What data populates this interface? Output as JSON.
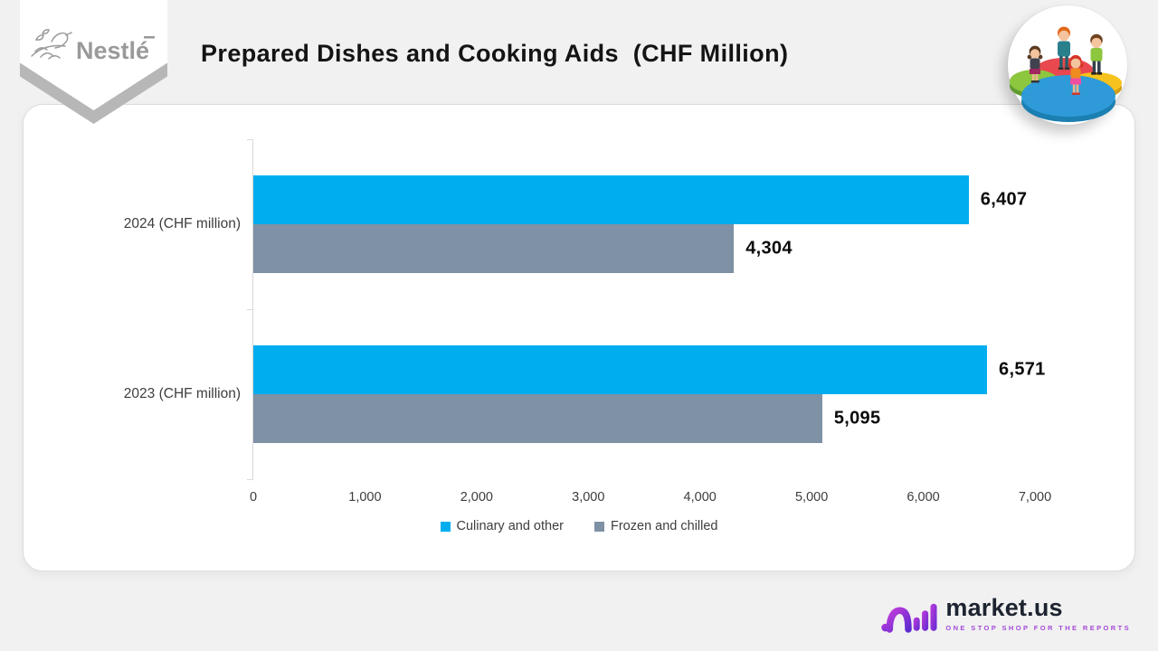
{
  "header": {
    "brand_logo_text": "Nestlé"
  },
  "chart_data": {
    "type": "bar",
    "orientation": "horizontal",
    "title": "Prepared Dishes and Cooking Aids  (CHF Million)",
    "categories": [
      "2024 (CHF million)",
      "2023 (CHF million)"
    ],
    "series": [
      {
        "name": "Culinary and other",
        "color": "#00aeef",
        "values": [
          6407,
          6571
        ],
        "labels": [
          "6,407",
          "6,571"
        ]
      },
      {
        "name": "Frozen and chilled",
        "color": "#7e91a5",
        "values": [
          4304,
          5095
        ],
        "labels": [
          "4,304",
          "5,095"
        ]
      }
    ],
    "xlim": [
      0,
      7000
    ],
    "x_tick_values": [
      0,
      1000,
      2000,
      3000,
      4000,
      5000,
      6000,
      7000
    ],
    "x_tick_labels": [
      "0",
      "1,000",
      "2,000",
      "3,000",
      "4,000",
      "5,000",
      "6,000",
      "7,000"
    ],
    "grid": false,
    "legend_position": "bottom"
  },
  "footer": {
    "brand": "market.us",
    "tagline": "ONE STOP SHOP FOR THE REPORTS"
  }
}
